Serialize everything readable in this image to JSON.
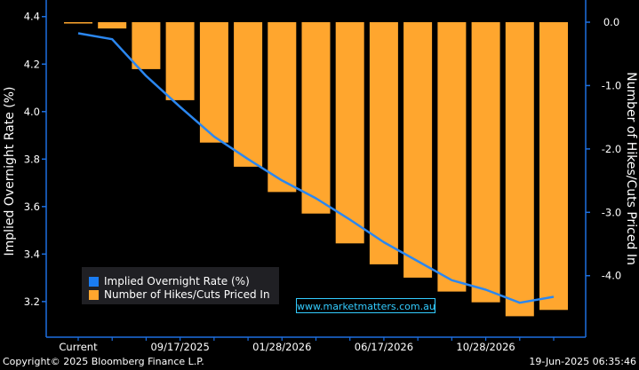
{
  "chart_data": {
    "type": "bar",
    "categories": [
      "Current",
      "",
      "",
      "",
      "",
      "",
      "",
      "",
      "",
      "",
      "",
      "",
      "",
      "",
      ""
    ],
    "x_tick_labels": [
      "Current",
      "09/17/2025",
      "01/28/2026",
      "06/17/2026",
      "10/28/2026"
    ],
    "series": [
      {
        "name": "Implied Overnight Rate (%)",
        "type": "line",
        "axis": "left",
        "values": [
          4.33,
          4.305,
          4.15,
          4.02,
          3.895,
          3.8,
          3.71,
          3.635,
          3.545,
          3.45,
          3.37,
          3.29,
          3.25,
          3.195,
          3.22
        ]
      },
      {
        "name": "Number of Hikes/Cuts Priced In",
        "type": "bar",
        "axis": "right",
        "values": [
          0.0,
          -0.1,
          -0.74,
          -1.23,
          -1.9,
          -2.28,
          -2.68,
          -3.02,
          -3.49,
          -3.82,
          -4.03,
          -4.25,
          -4.42,
          -4.64,
          -4.54
        ]
      }
    ],
    "left_axis": {
      "label": "Implied Overnight Rate (%)",
      "range": [
        3.05,
        4.47
      ],
      "ticks": [
        "3.2",
        "3.4",
        "3.6",
        "3.8",
        "4.0",
        "4.2",
        "4.4"
      ]
    },
    "right_axis": {
      "label": "Number of Hikes/Cuts Priced In",
      "range": [
        -4.97,
        0.35
      ],
      "ticks": [
        "0.0",
        "-1.0",
        "-2.0",
        "-3.0",
        "-4.0"
      ]
    },
    "legend_placement": "bottom-left",
    "grid": false
  },
  "colors": {
    "line": "#2b87f0",
    "bar": "#ffa62e",
    "axis": "#1d6fe0",
    "background": "#000000",
    "watermark": "#33ccff"
  },
  "footer": {
    "copyright": "Copyright© 2025 Bloomberg Finance L.P.",
    "timestamp": "19-Jun-2025 06:35:46"
  },
  "watermark": "www.marketmatters.com.au"
}
